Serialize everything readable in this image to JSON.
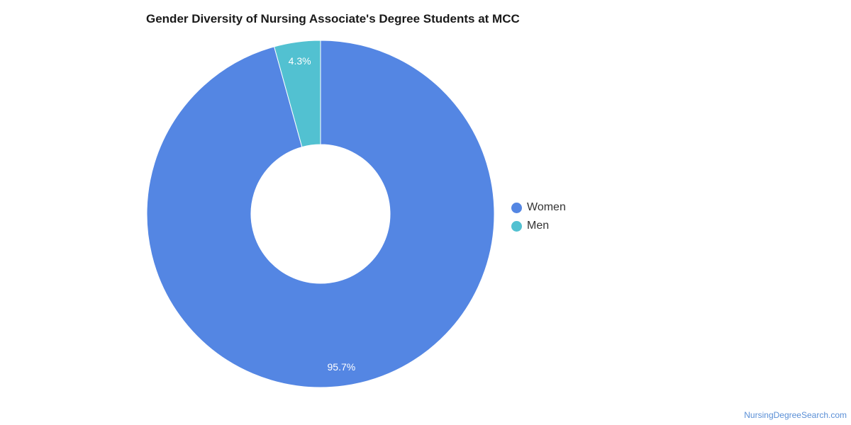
{
  "chart_data": {
    "type": "pie",
    "title": "Gender Diversity of Nursing Associate's Degree Students at MCC",
    "categories": [
      "Women",
      "Men"
    ],
    "values": [
      95.7,
      4.3
    ],
    "labels": [
      "95.7%",
      "4.3%"
    ],
    "colors": [
      "#5486e3",
      "#52c1d1"
    ],
    "donut": true,
    "legend_position": "right"
  },
  "footer": {
    "source": "NursingDegreeSearch.com"
  }
}
